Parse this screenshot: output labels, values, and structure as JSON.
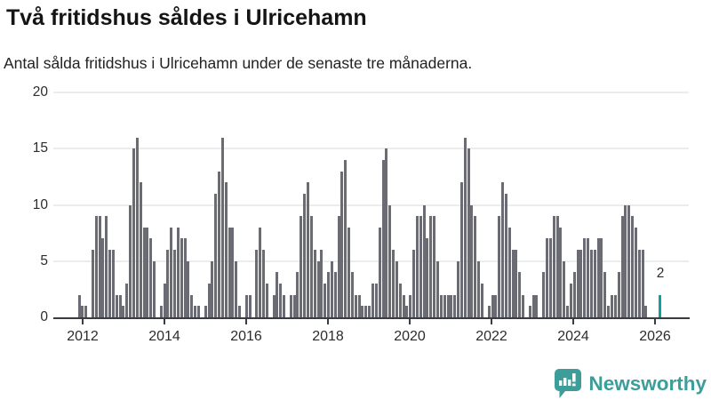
{
  "header": {
    "title": "Två fritidshus såldes i Ulricehamn",
    "subtitle": "Antal sålda fritidshus i Ulricehamn under de senaste tre månaderna."
  },
  "chart_data": {
    "type": "bar",
    "title": "Två fritidshus såldes i Ulricehamn",
    "subtitle": "Antal sålda fritidshus i Ulricehamn under de senaste tre månaderna.",
    "frequency": "monthly",
    "start_month": "2011-12",
    "end_month": "2026-02",
    "values": [
      2,
      1,
      1,
      0,
      6,
      9,
      9,
      7,
      9,
      6,
      6,
      2,
      2,
      1,
      3,
      10,
      15,
      16,
      12,
      8,
      8,
      7,
      5,
      0,
      1,
      3,
      6,
      8,
      6,
      8,
      7,
      7,
      5,
      2,
      1,
      1,
      0,
      1,
      3,
      5,
      11,
      13,
      16,
      12,
      8,
      8,
      5,
      1,
      0,
      2,
      2,
      0,
      6,
      8,
      6,
      3,
      0,
      2,
      4,
      3,
      2,
      0,
      2,
      2,
      4,
      9,
      11,
      12,
      9,
      6,
      5,
      6,
      3,
      4,
      5,
      4,
      9,
      13,
      14,
      8,
      4,
      2,
      2,
      1,
      1,
      1,
      3,
      3,
      8,
      14,
      15,
      10,
      6,
      5,
      3,
      2,
      1,
      2,
      6,
      9,
      9,
      10,
      7,
      9,
      9,
      5,
      2,
      2,
      2,
      2,
      2,
      5,
      12,
      16,
      15,
      10,
      9,
      5,
      3,
      0,
      1,
      2,
      2,
      9,
      12,
      11,
      8,
      6,
      6,
      4,
      2,
      0,
      1,
      2,
      2,
      0,
      4,
      7,
      7,
      9,
      9,
      8,
      5,
      1,
      3,
      4,
      6,
      6,
      7,
      7,
      6,
      6,
      7,
      7,
      4,
      1,
      2,
      2,
      4,
      9,
      10,
      10,
      9,
      8,
      6,
      6,
      1,
      0,
      0,
      0,
      2
    ],
    "highlight": {
      "index": 170,
      "value": 2,
      "label": "2",
      "color": "#0fa09c"
    },
    "bar_color": "#6b6b73",
    "ylim": [
      0,
      20
    ],
    "y_ticks": [
      0,
      5,
      10,
      15,
      20
    ],
    "x_tick_labels": [
      "2012",
      "2014",
      "2016",
      "2018",
      "2020",
      "2022",
      "2024",
      "2026"
    ],
    "grid": true,
    "legend_position": "none"
  },
  "footer": {
    "brand": "Newsworthy",
    "brand_color": "#3d9e99",
    "logo_icon": "speech-bubble-bar-chart"
  }
}
